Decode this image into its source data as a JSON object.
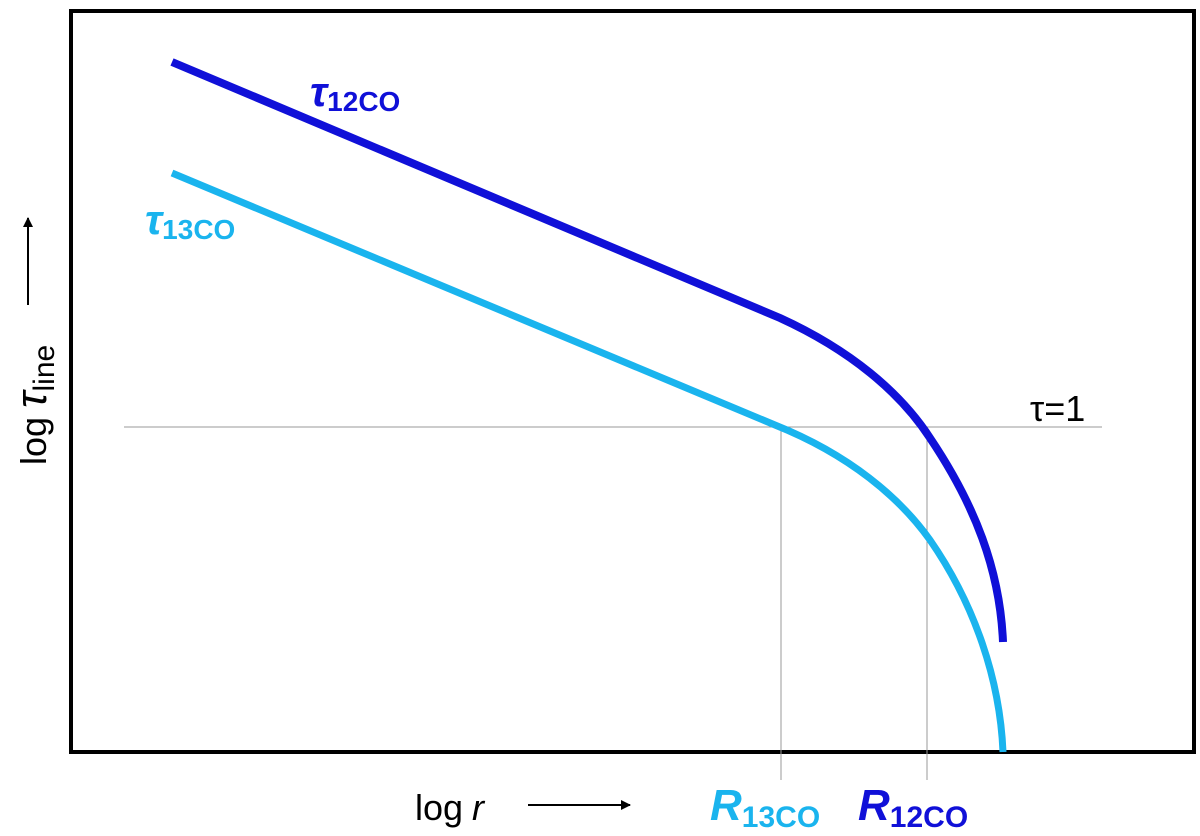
{
  "curves": [
    {
      "symbol": "τ",
      "subscript": "12CO"
    },
    {
      "symbol": "τ",
      "subscript": "13CO"
    }
  ],
  "threshold": "τ=1",
  "y_axis": {
    "prefix": "log",
    "symbol": "τ",
    "subscript": "line"
  },
  "x_axis": {
    "prefix": "log",
    "symbol": "r"
  },
  "radii": [
    {
      "symbol": "R",
      "subscript": "13CO"
    },
    {
      "symbol": "R",
      "subscript": "12CO"
    }
  ]
}
